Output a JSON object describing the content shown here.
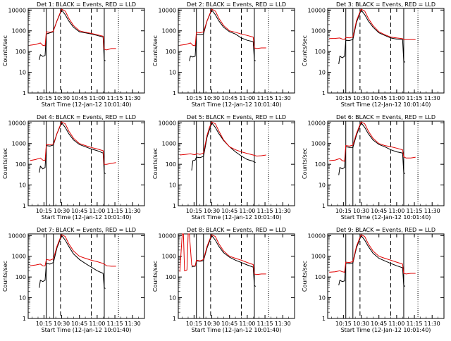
{
  "figure": {
    "ylabel": "Counts/sec",
    "xlabel": "Start Time (12-Jan-12 10:01:40)",
    "yticks": [
      "1",
      "10",
      "100",
      "1000",
      "10000"
    ],
    "xticks": [
      "10:15",
      "10:30",
      "10:45",
      "11:00",
      "11:15",
      "11:30"
    ]
  },
  "colors": {
    "events": "#000000",
    "lld": "#e00000",
    "axes": "#000000"
  },
  "chart_data": [
    {
      "type": "line",
      "title": "Det 1: BLACK = Events, RED = LLD",
      "yscale": "log",
      "ylim": [
        1,
        12000
      ],
      "xlim_minutes": [
        601.67,
        700
      ],
      "vlines_solid": [
        617,
        623,
        666
      ],
      "vlines_dashed": [
        629,
        655
      ],
      "series": [
        {
          "name": "Events",
          "x": [
            603,
            611,
            611,
            612,
            614,
            616,
            617,
            620,
            623,
            623,
            626,
            630,
            633,
            636,
            640,
            645,
            650,
            655,
            660,
            665,
            666,
            667
          ],
          "y": [
            null,
            null,
            40,
            70,
            58,
            65,
            700,
            800,
            900,
            1000,
            3000,
            10000,
            6000,
            3000,
            1500,
            900,
            800,
            700,
            600,
            500,
            40,
            35
          ]
        },
        {
          "name": "LLD",
          "x": [
            603,
            608,
            612,
            614,
            616,
            617,
            620,
            623,
            623,
            626,
            628,
            630,
            633,
            636,
            640,
            645,
            650,
            655,
            660,
            665,
            666,
            668,
            672,
            676
          ],
          "y": [
            200,
            220,
            260,
            200,
            190,
            900,
            850,
            950,
            1000,
            3000,
            6000,
            11000,
            9000,
            4000,
            1800,
            1000,
            850,
            750,
            650,
            550,
            130,
            120,
            140,
            140
          ]
        }
      ]
    },
    {
      "type": "line",
      "title": "Det 2: BLACK = Events, RED = LLD",
      "yscale": "log",
      "ylim": [
        1,
        12000
      ],
      "xlim_minutes": [
        601.67,
        700
      ],
      "vlines_solid": [
        617,
        623,
        666
      ],
      "vlines_dashed": [
        629,
        655
      ],
      "series": [
        {
          "name": "Events",
          "x": [
            611,
            612,
            614,
            616,
            617,
            620,
            623,
            626,
            630,
            633,
            636,
            640,
            645,
            650,
            655,
            660,
            665,
            666,
            667
          ],
          "y": [
            35,
            60,
            55,
            60,
            700,
            650,
            700,
            3000,
            10000,
            6000,
            3000,
            1500,
            900,
            700,
            450,
            350,
            300,
            40,
            35
          ]
        },
        {
          "name": "LLD",
          "x": [
            603,
            608,
            612,
            614,
            616,
            617,
            620,
            623,
            626,
            628,
            630,
            633,
            636,
            640,
            645,
            650,
            655,
            660,
            665,
            666,
            668,
            672,
            676
          ],
          "y": [
            200,
            220,
            260,
            200,
            190,
            850,
            800,
            900,
            3000,
            6000,
            11000,
            9000,
            4000,
            1800,
            1000,
            850,
            700,
            600,
            500,
            150,
            140,
            150,
            150
          ]
        }
      ]
    },
    {
      "type": "line",
      "title": "Det 3: BLACK = Events, RED = LLD",
      "yscale": "log",
      "ylim": [
        1,
        12000
      ],
      "xlim_minutes": [
        601.67,
        700
      ],
      "vlines_solid": [
        617,
        623,
        666
      ],
      "vlines_dashed": [
        629,
        655
      ],
      "series": [
        {
          "name": "Events",
          "x": [
            611,
            612,
            614,
            616,
            617,
            620,
            623,
            626,
            630,
            633,
            636,
            640,
            645,
            650,
            655,
            660,
            665,
            666,
            667
          ],
          "y": [
            25,
            60,
            50,
            60,
            350,
            340,
            380,
            2500,
            10000,
            6000,
            3000,
            1500,
            800,
            600,
            450,
            400,
            380,
            35,
            30
          ]
        },
        {
          "name": "LLD",
          "x": [
            603,
            608,
            612,
            614,
            616,
            617,
            620,
            623,
            626,
            628,
            630,
            633,
            636,
            640,
            645,
            650,
            655,
            660,
            665,
            666,
            668,
            672,
            676
          ],
          "y": [
            420,
            430,
            450,
            400,
            380,
            480,
            460,
            500,
            3000,
            6000,
            11000,
            9000,
            4000,
            1800,
            900,
            650,
            500,
            450,
            420,
            380,
            380,
            380,
            380
          ]
        }
      ]
    },
    {
      "type": "line",
      "title": "Det 4: BLACK = Events, RED = LLD",
      "yscale": "log",
      "ylim": [
        1,
        12000
      ],
      "xlim_minutes": [
        601.67,
        700
      ],
      "vlines_solid": [
        617,
        623,
        666
      ],
      "vlines_dashed": [
        629,
        655
      ],
      "series": [
        {
          "name": "Events",
          "x": [
            611,
            612,
            614,
            616,
            617,
            620,
            623,
            626,
            630,
            633,
            636,
            640,
            645,
            650,
            655,
            660,
            665,
            666,
            667
          ],
          "y": [
            40,
            80,
            60,
            70,
            800,
            750,
            850,
            3000,
            10000,
            6000,
            3000,
            1500,
            900,
            700,
            550,
            450,
            350,
            40,
            35
          ]
        },
        {
          "name": "LLD",
          "x": [
            603,
            608,
            612,
            614,
            616,
            617,
            620,
            623,
            626,
            628,
            630,
            633,
            636,
            640,
            645,
            650,
            655,
            660,
            665,
            666,
            668,
            672,
            676
          ],
          "y": [
            150,
            170,
            200,
            160,
            150,
            900,
            850,
            950,
            3000,
            6000,
            11000,
            9000,
            4000,
            1800,
            1000,
            800,
            650,
            550,
            450,
            100,
            100,
            110,
            120
          ]
        }
      ]
    },
    {
      "type": "line",
      "title": "Det 5: BLACK = Events, RED = LLD",
      "yscale": "log",
      "ylim": [
        1,
        12000
      ],
      "xlim_minutes": [
        601.67,
        700
      ],
      "vlines_solid": [
        617,
        623,
        666
      ],
      "vlines_dashed": [
        629,
        655
      ],
      "series": [
        {
          "name": "Events",
          "x": [
            613,
            614,
            616,
            617,
            620,
            623,
            626,
            630,
            633,
            636,
            640,
            645,
            650,
            655,
            660,
            665,
            667
          ],
          "y": [
            50,
            150,
            160,
            220,
            210,
            240,
            2000,
            10000,
            6000,
            3000,
            1400,
            700,
            400,
            250,
            170,
            140,
            120
          ]
        },
        {
          "name": "LLD",
          "x": [
            603,
            608,
            612,
            614,
            616,
            617,
            620,
            623,
            626,
            628,
            630,
            633,
            636,
            640,
            645,
            650,
            655,
            660,
            665,
            668,
            672,
            676
          ],
          "y": [
            280,
            300,
            320,
            300,
            290,
            330,
            300,
            350,
            2500,
            6000,
            11000,
            9000,
            4000,
            1500,
            700,
            500,
            400,
            330,
            280,
            250,
            260,
            280
          ]
        }
      ]
    },
    {
      "type": "line",
      "title": "Det 6: BLACK = Events, RED = LLD",
      "yscale": "log",
      "ylim": [
        1,
        12000
      ],
      "xlim_minutes": [
        601.67,
        700
      ],
      "vlines_solid": [
        617,
        623,
        666
      ],
      "vlines_dashed": [
        629,
        655
      ],
      "series": [
        {
          "name": "Events",
          "x": [
            611,
            612,
            614,
            616,
            617,
            620,
            623,
            626,
            630,
            633,
            636,
            640,
            645,
            650,
            655,
            660,
            665,
            666,
            667
          ],
          "y": [
            30,
            70,
            60,
            70,
            700,
            650,
            650,
            2500,
            10000,
            6000,
            3000,
            1500,
            900,
            700,
            500,
            400,
            350,
            40,
            35
          ]
        },
        {
          "name": "LLD",
          "x": [
            603,
            608,
            612,
            614,
            616,
            617,
            620,
            623,
            626,
            628,
            630,
            633,
            636,
            640,
            645,
            650,
            655,
            660,
            665,
            666,
            668,
            672,
            676
          ],
          "y": [
            150,
            160,
            190,
            150,
            140,
            800,
            750,
            850,
            3000,
            6000,
            11000,
            9000,
            4000,
            1800,
            1000,
            800,
            700,
            600,
            500,
            230,
            200,
            200,
            220
          ]
        }
      ]
    },
    {
      "type": "line",
      "title": "Det 7: BLACK = Events, RED = LLD",
      "yscale": "log",
      "ylim": [
        1,
        12000
      ],
      "xlim_minutes": [
        601.67,
        700
      ],
      "vlines_solid": [
        617,
        623,
        666
      ],
      "vlines_dashed": [
        629,
        655
      ],
      "series": [
        {
          "name": "Events",
          "x": [
            611,
            612,
            614,
            616,
            617,
            620,
            623,
            626,
            630,
            633,
            636,
            640,
            645,
            650,
            655,
            660,
            665,
            666,
            667
          ],
          "y": [
            30,
            70,
            60,
            70,
            450,
            420,
            500,
            2500,
            10000,
            6000,
            3000,
            1300,
            700,
            450,
            300,
            200,
            150,
            30,
            28
          ]
        },
        {
          "name": "LLD",
          "x": [
            603,
            608,
            612,
            614,
            616,
            617,
            620,
            623,
            626,
            628,
            630,
            633,
            636,
            640,
            645,
            650,
            655,
            660,
            665,
            668,
            672,
            676
          ],
          "y": [
            350,
            380,
            420,
            350,
            340,
            700,
            650,
            750,
            3000,
            6000,
            11000,
            9000,
            4000,
            1800,
            1000,
            800,
            650,
            550,
            450,
            350,
            330,
            330
          ]
        }
      ]
    },
    {
      "type": "line",
      "title": "Det 8: BLACK = Events, RED = LLD",
      "yscale": "log",
      "ylim": [
        1,
        12000
      ],
      "xlim_minutes": [
        601.67,
        700
      ],
      "vlines_solid": [
        617,
        623,
        666
      ],
      "vlines_dashed": [
        629,
        655
      ],
      "series": [
        {
          "name": "Events",
          "x": [
            613,
            614,
            616,
            617,
            620,
            623,
            626,
            630,
            633,
            636,
            640,
            645,
            650,
            655,
            660,
            665,
            666,
            667
          ],
          "y": [
            300,
            320,
            330,
            600,
            570,
            620,
            2500,
            10000,
            6000,
            3000,
            1500,
            900,
            650,
            500,
            380,
            300,
            40,
            35
          ]
        },
        {
          "name": "LLD",
          "x": [
            603,
            605,
            606,
            607,
            609,
            610,
            611,
            613,
            614,
            616,
            617,
            620,
            623,
            626,
            628,
            630,
            633,
            636,
            640,
            645,
            650,
            655,
            660,
            665,
            666,
            668,
            672,
            676
          ],
          "y": [
            180,
            12000,
            12000,
            200,
            220,
            12000,
            12000,
            380,
            350,
            340,
            650,
            600,
            700,
            3000,
            6000,
            11000,
            9000,
            4000,
            1800,
            1000,
            800,
            650,
            500,
            400,
            140,
            130,
            140,
            140
          ]
        }
      ]
    },
    {
      "type": "line",
      "title": "Det 9: BLACK = Events, RED = LLD",
      "yscale": "log",
      "ylim": [
        1,
        12000
      ],
      "xlim_minutes": [
        601.67,
        700
      ],
      "vlines_solid": [
        617,
        623,
        666
      ],
      "vlines_dashed": [
        629,
        655
      ],
      "series": [
        {
          "name": "Events",
          "x": [
            611,
            612,
            614,
            616,
            617,
            620,
            623,
            626,
            630,
            633,
            636,
            640,
            645,
            650,
            655,
            660,
            665,
            666,
            667
          ],
          "y": [
            40,
            70,
            60,
            65,
            450,
            430,
            480,
            2500,
            10000,
            6000,
            3000,
            1400,
            800,
            600,
            450,
            350,
            280,
            40,
            35
          ]
        },
        {
          "name": "LLD",
          "x": [
            603,
            608,
            612,
            614,
            616,
            617,
            620,
            623,
            626,
            628,
            630,
            633,
            636,
            640,
            645,
            650,
            655,
            660,
            665,
            666,
            668,
            672,
            676
          ],
          "y": [
            170,
            180,
            200,
            180,
            170,
            520,
            500,
            550,
            3000,
            6000,
            11000,
            9000,
            4000,
            1800,
            1000,
            800,
            650,
            520,
            420,
            150,
            140,
            150,
            150
          ]
        }
      ]
    }
  ]
}
